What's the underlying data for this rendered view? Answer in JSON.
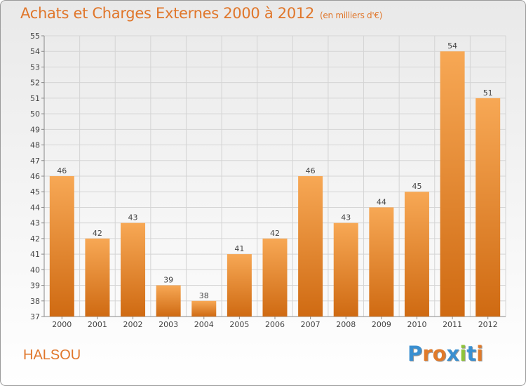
{
  "page": {
    "title": "Achats et Charges Externes 2000 à 2012",
    "title_unit": "(en milliers d'€)",
    "location": "HALSOU",
    "brand": "Proxiti",
    "brand_letter_colors": [
      "#3a8fd0",
      "#e07a2a",
      "#e07a2a",
      "#3a8fd0",
      "#8ec43a",
      "#3a8fd0",
      "#e07a2a"
    ]
  },
  "colors": {
    "accent": "#e0762a",
    "bar_top": "#f7a855",
    "bar_bottom": "#cf6a12",
    "grid": "#d4d4d4"
  },
  "chart_data": {
    "type": "bar",
    "title": "Achats et Charges Externes 2000 à 2012",
    "categories": [
      "2000",
      "2001",
      "2002",
      "2003",
      "2004",
      "2005",
      "2006",
      "2007",
      "2008",
      "2009",
      "2010",
      "2011",
      "2012"
    ],
    "values": [
      46,
      42,
      43,
      39,
      38,
      41,
      42,
      46,
      43,
      44,
      45,
      54,
      51
    ],
    "ylim": [
      37,
      55
    ],
    "yticks": [
      37,
      38,
      39,
      40,
      41,
      42,
      43,
      44,
      45,
      46,
      47,
      48,
      49,
      50,
      51,
      52,
      53,
      54,
      55
    ],
    "grid": true,
    "xlabel": "",
    "ylabel": ""
  }
}
